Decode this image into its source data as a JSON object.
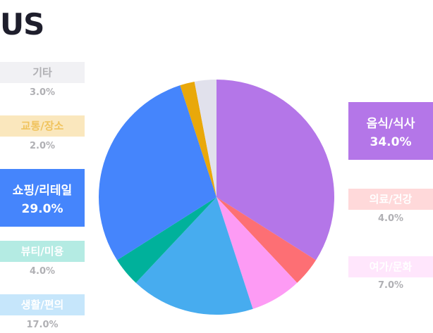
{
  "title": "US",
  "chart_data": {
    "type": "pie",
    "title": "US",
    "start_angle_deg": 0,
    "direction": "clockwise",
    "slices": [
      {
        "label": "음식/식사",
        "value": 34.0,
        "pct_text": "34.0%",
        "color": "#b476e8"
      },
      {
        "label": "의료/건강",
        "value": 4.0,
        "pct_text": "4.0%",
        "color": "#fd6f74"
      },
      {
        "label": "여가/문화",
        "value": 7.0,
        "pct_text": "7.0%",
        "color": "#fd9bf4"
      },
      {
        "label": "생활/편의",
        "value": 17.0,
        "pct_text": "17.0%",
        "color": "#47acef"
      },
      {
        "label": "뷰티/미용",
        "value": 4.0,
        "pct_text": "4.0%",
        "color": "#00b19b"
      },
      {
        "label": "쇼핑/리테일",
        "value": 29.0,
        "pct_text": "29.0%",
        "color": "#4585fc"
      },
      {
        "label": "교통/장소",
        "value": 2.0,
        "pct_text": "2.0%",
        "color": "#e9a80a"
      },
      {
        "label": "기타",
        "value": 3.0,
        "pct_text": "3.0%",
        "color": "#e1e1ec"
      }
    ]
  },
  "label_styles": {
    "기타": {
      "bg": "#f1f1f4",
      "fg": "#b0b0b4"
    },
    "교통/장소": {
      "bg": "#fae7bd",
      "fg": "#f0c35d"
    },
    "쇼핑/리테일": {
      "bg": "#4585fc",
      "fg": "#ffffff"
    },
    "뷰티/미용": {
      "bg": "#b4ebe3",
      "fg": "#ffffff"
    },
    "생활/편의": {
      "bg": "#c6e6fb",
      "fg": "#ffffff"
    },
    "음식/식사": {
      "bg": "#b476e8",
      "fg": "#ffffff"
    },
    "의료/건강": {
      "bg": "#ffd9da",
      "fg": "#ffffff"
    },
    "여가/문화": {
      "bg": "#ffe6fc",
      "fg": "#ffffff"
    }
  }
}
